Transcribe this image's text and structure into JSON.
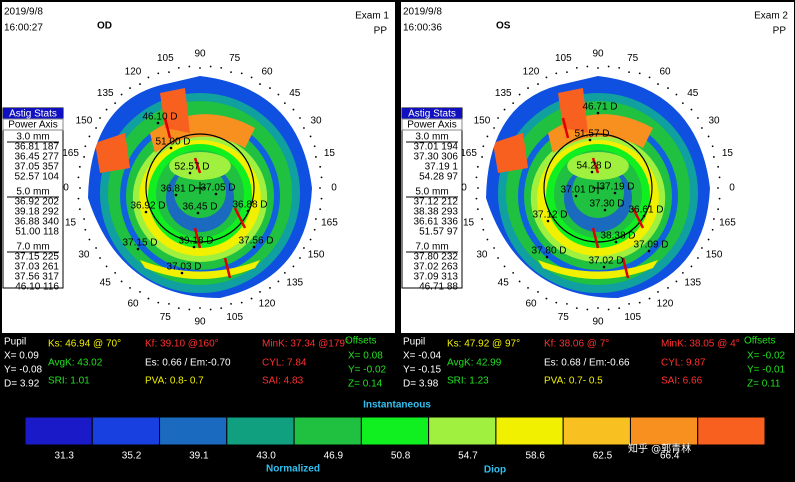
{
  "panels": [
    {
      "date": "2019/9/8",
      "time": "16:00:27",
      "eye": "OD",
      "exam": "Exam 1",
      "pp": "PP",
      "astig": {
        "title": "Astig Stats",
        "subtitle": "Power Axis",
        "groups": [
          {
            "zone": "3.0 mm",
            "rows": [
              "36.81 187",
              "36.45 277",
              "37.05 357",
              "52.57 104"
            ]
          },
          {
            "zone": "5.0 mm",
            "rows": [
              "36.92 202",
              "39.18 292",
              "36.88 340",
              "51.00 118"
            ]
          },
          {
            "zone": "7.0 mm",
            "rows": [
              "37.15 225",
              "37.03 261",
              "37.56 317",
              "46.10 116"
            ]
          }
        ]
      },
      "map_labels": [
        "46.10 D",
        "51.00 D",
        "52.57 D",
        "36.81 D",
        "37.05 D",
        "36.92 D",
        "36.45 D",
        "36.88 D",
        "37.15 D",
        "39.18 D",
        "37.56 D",
        "37.03 D"
      ],
      "info": [
        "Pupil",
        "X= 0.09",
        "Y= -0.08",
        "D= 3.92",
        "Ks: 46.94 @ 70°",
        "AvgK: 43.02",
        "SRI: 1.01",
        "Kf: 39.10 @160°",
        "Es: 0.66 / Em:-0.70",
        "PVA:  0.8-  0.7",
        "MinK: 37.34 @179°",
        "CYL:  7.84",
        "SAI:  4.83",
        "Offsets",
        "X= 0.08",
        "Y= -0.02",
        "Z= 0.14"
      ]
    },
    {
      "date": "2019/9/8",
      "time": "16:00:36",
      "eye": "OS",
      "exam": "Exam 2",
      "pp": "PP",
      "astig": {
        "title": "Astig Stats",
        "subtitle": "Power Axis",
        "groups": [
          {
            "zone": "3.0 mm",
            "rows": [
              "37.01 194",
              "37.30 306",
              "37.19 1",
              "54.28 97"
            ]
          },
          {
            "zone": "5.0 mm",
            "rows": [
              "37.12 212",
              "38.38 293",
              "36.61 336",
              "51.57 97"
            ]
          },
          {
            "zone": "7.0 mm",
            "rows": [
              "37.80 232",
              "37.02 263",
              "37.09 313",
              "46.71 88"
            ]
          }
        ]
      },
      "map_labels": [
        "46.71 D",
        "51.57 D",
        "54.28 D",
        "37.01 D",
        "37.19 D",
        "37.30 D",
        "37.12 D",
        "36.61 D",
        "38.38 D",
        "37.80 D",
        "37.09 D",
        "37.02 D"
      ],
      "info": [
        "Pupil",
        "X= -0.04",
        "Y= -0.15",
        "D= 3.98",
        "Ks: 47.92 @ 97°",
        "AvgK: 42.99",
        "SRI: 1.23",
        "Kf: 38.06 @  7°",
        "Es: 0.68 / Em:-0.66",
        "PVA:  0.7-  0.5",
        "MinK: 38.05 @  4°",
        "CYL:  9.87",
        "SAI:  6.66",
        "Offsets",
        "X= -0.02",
        "Y= -0.01",
        "Z= 0.11"
      ]
    }
  ],
  "axis_angles": [
    "0",
    "15",
    "30",
    "45",
    "60",
    "75",
    "90",
    "105",
    "120",
    "135",
    "150",
    "165"
  ],
  "scale": {
    "title": "Instantaneous",
    "values": [
      "31.3",
      "35.2",
      "39.1",
      "43.0",
      "46.9",
      "50.8",
      "54.7",
      "58.6",
      "62.5",
      "66.4"
    ],
    "left_label": "Normalized",
    "right_label": "Diop"
  },
  "watermark": "知乎 @郭青林"
}
